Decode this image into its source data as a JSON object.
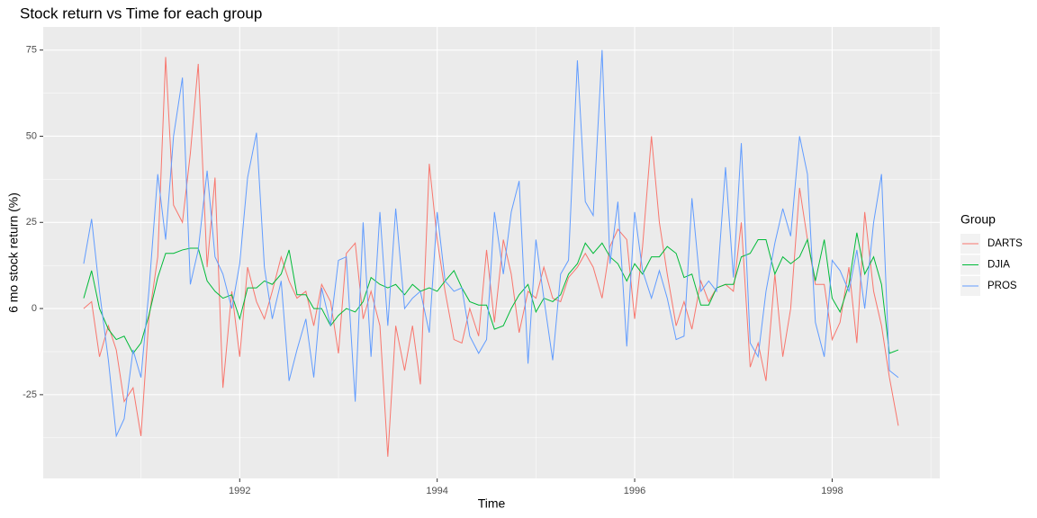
{
  "chart_data": {
    "type": "line",
    "title": "Stock return vs Time for each group",
    "x_label": "Time",
    "y_label": "6 mo stock return (%)",
    "legend_title": "Group",
    "legend_position": "right",
    "grid": true,
    "x": [
      1990.42,
      1990.5,
      1990.58,
      1990.67,
      1990.75,
      1990.83,
      1990.92,
      1991.0,
      1991.08,
      1991.17,
      1991.25,
      1991.33,
      1991.42,
      1991.5,
      1991.58,
      1991.67,
      1991.75,
      1991.83,
      1991.92,
      1992.0,
      1992.08,
      1992.17,
      1992.25,
      1992.33,
      1992.42,
      1992.5,
      1992.58,
      1992.67,
      1992.75,
      1992.83,
      1992.92,
      1993.0,
      1993.08,
      1993.17,
      1993.25,
      1993.33,
      1993.42,
      1993.5,
      1993.58,
      1993.67,
      1993.75,
      1993.83,
      1993.92,
      1994.0,
      1994.08,
      1994.17,
      1994.25,
      1994.33,
      1994.42,
      1994.5,
      1994.58,
      1994.67,
      1994.75,
      1994.83,
      1994.92,
      1995.0,
      1995.08,
      1995.17,
      1995.25,
      1995.33,
      1995.42,
      1995.5,
      1995.58,
      1995.67,
      1995.75,
      1995.83,
      1995.92,
      1996.0,
      1996.08,
      1996.17,
      1996.25,
      1996.33,
      1996.42,
      1996.5,
      1996.58,
      1996.67,
      1996.75,
      1996.83,
      1996.92,
      1997.0,
      1997.08,
      1997.17,
      1997.25,
      1997.33,
      1997.42,
      1997.5,
      1997.58,
      1997.67,
      1997.75,
      1997.83,
      1997.92,
      1998.0,
      1998.08,
      1998.17,
      1998.25,
      1998.33,
      1998.42,
      1998.5,
      1998.58,
      1998.67
    ],
    "series": [
      {
        "name": "DARTS",
        "color": "#F8766D",
        "values": [
          0,
          2,
          -14,
          -5,
          -12,
          -27,
          -23,
          -37,
          -3,
          15,
          73,
          30,
          25,
          45,
          71,
          12,
          38,
          -23,
          5,
          -14,
          12,
          2,
          -3,
          5,
          15,
          8,
          3,
          5,
          -5,
          7,
          2,
          -13,
          16,
          19,
          -3,
          5,
          -5,
          -43,
          -5,
          -18,
          -5,
          -22,
          42,
          20,
          5,
          -9,
          -10,
          0,
          -8,
          17,
          -4,
          20,
          10,
          -7,
          5,
          3,
          12,
          3,
          2,
          9,
          12,
          16,
          12,
          3,
          18,
          23,
          20,
          -3,
          18,
          50,
          25,
          10,
          -5,
          2,
          -6,
          8,
          2,
          6,
          7,
          5,
          25,
          -17,
          -10,
          -21,
          10,
          -14,
          0,
          35,
          20,
          7,
          7,
          -9,
          -4,
          12,
          -10,
          28,
          5,
          -5,
          -20,
          -34
        ]
      },
      {
        "name": "DJIA",
        "color": "#00BA38",
        "values": [
          3,
          11,
          0,
          -6,
          -9,
          -8,
          -13,
          -10,
          -2,
          9,
          16,
          16,
          17,
          17.5,
          17.5,
          8,
          5,
          3,
          4,
          -3,
          6,
          6,
          8,
          7,
          10,
          17,
          4,
          4,
          0,
          0,
          -5,
          -2,
          0,
          -1,
          2,
          9,
          7,
          6,
          7,
          4,
          7,
          5,
          6,
          5,
          8,
          11,
          6,
          2,
          1,
          1,
          -6,
          -5,
          0,
          4,
          7,
          -1,
          3,
          2,
          4,
          10,
          13,
          19,
          16,
          19,
          15,
          13,
          8,
          13,
          10,
          15,
          15,
          18,
          16,
          9,
          10,
          1,
          1,
          6,
          7,
          7,
          15,
          16,
          20,
          20,
          10,
          15,
          13,
          15,
          20,
          8,
          20,
          3,
          -1,
          7,
          22,
          10,
          15,
          7,
          -13,
          -12
        ]
      },
      {
        "name": "PROS",
        "color": "#619CFF",
        "values": [
          13,
          26,
          5,
          -15,
          -37,
          -32,
          -12,
          -20,
          5,
          39,
          20,
          50,
          67,
          7,
          17,
          40,
          15,
          10,
          0,
          13,
          38,
          51,
          12,
          -3,
          8,
          -21,
          -12,
          -3,
          -20,
          6,
          -5,
          14,
          15,
          -27,
          25,
          -14,
          28,
          -5,
          29,
          0,
          3,
          5,
          -7,
          28,
          8,
          5,
          6,
          -8,
          -13,
          -9,
          28,
          10,
          28,
          37,
          -16,
          20,
          3,
          -15,
          10,
          14,
          72,
          31,
          27,
          75,
          13,
          31,
          -11,
          28,
          11,
          3,
          11,
          3,
          -9,
          -8,
          32,
          5,
          8,
          5,
          41,
          9,
          48,
          -10,
          -14,
          5,
          19,
          29,
          21,
          50,
          39,
          -4,
          -14,
          14,
          11,
          5,
          17,
          0,
          25,
          39,
          -18,
          -20
        ]
      }
    ],
    "xlim": [
      1990.01,
      1999.09
    ],
    "xticks": [
      1992,
      1994,
      1996,
      1998
    ],
    "ylim": [
      -49.3,
      81.7
    ],
    "yticks": [
      -25,
      0,
      25,
      50,
      75
    ]
  }
}
